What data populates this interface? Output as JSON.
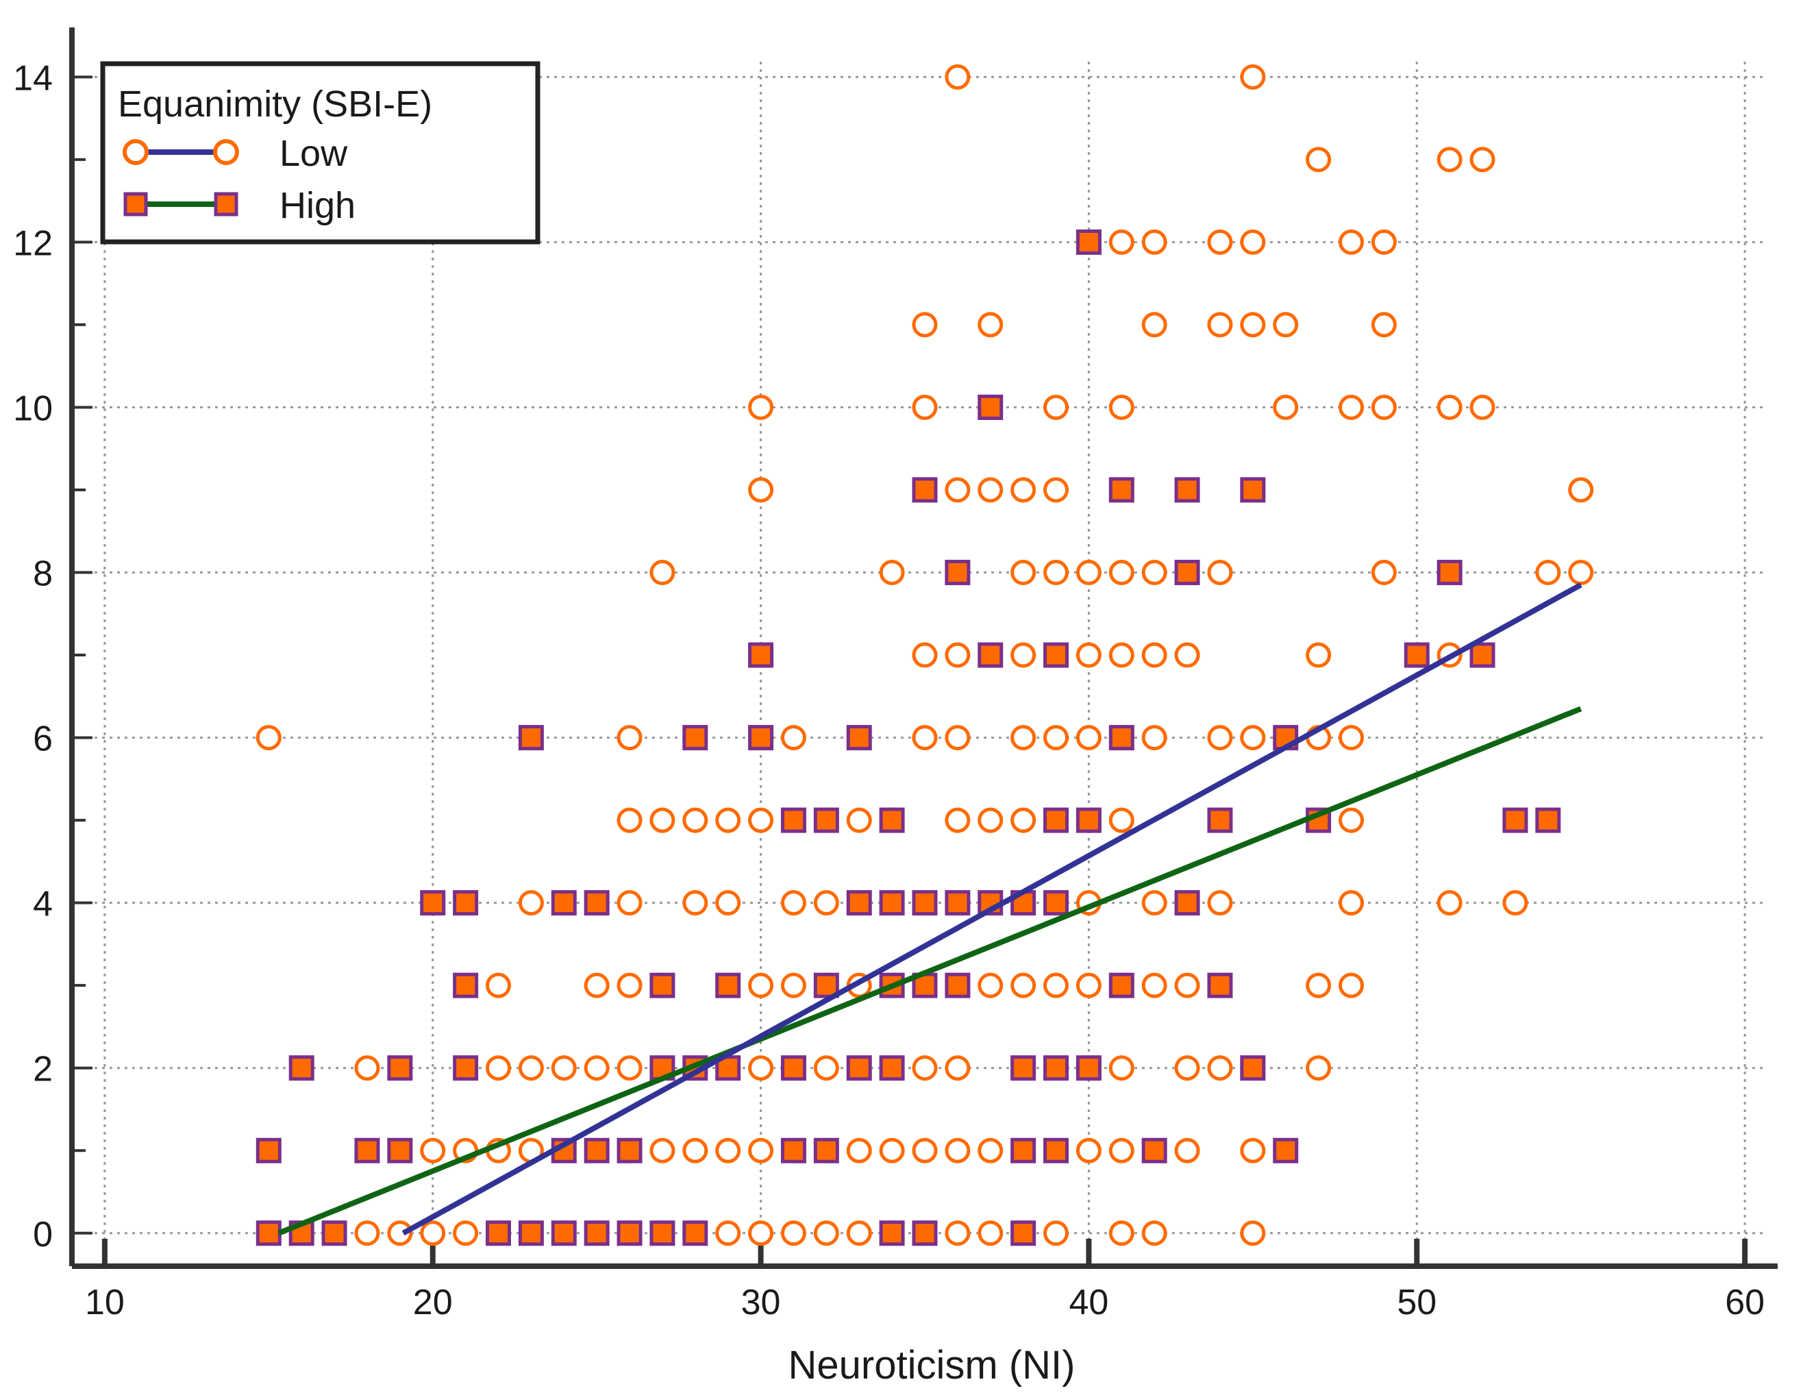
{
  "chart_data": {
    "type": "scatter",
    "title": "",
    "xlabel": "Neuroticism (NI)",
    "ylabel": "",
    "xlim": [
      9,
      61
    ],
    "ylim": [
      -0.4,
      14.6
    ],
    "x_ticks": [
      10,
      20,
      30,
      40,
      50,
      60
    ],
    "y_ticks": [
      0,
      2,
      4,
      6,
      8,
      10,
      12,
      14
    ],
    "x_tick_labels": [
      "10",
      "20",
      "30",
      "40",
      "50",
      "60"
    ],
    "y_tick_labels": [
      "0",
      "2",
      "4",
      "6",
      "8",
      "10",
      "12",
      "14"
    ],
    "grid": true,
    "legend": {
      "title": "Equanimity (SBI-E)",
      "position": "top-left",
      "entries": [
        "Low",
        "High"
      ]
    },
    "colors": {
      "marker_fill_high": "#ff6a00",
      "marker_edge_high": "#7a2f8a",
      "marker_edge_low": "#ff6a00",
      "line_low": "#323296",
      "line_high": "#0f6414",
      "grid": "#999999",
      "axis": "#333333"
    },
    "series": [
      {
        "name": "Low",
        "marker": "circle-open",
        "points": [
          [
            36,
            14
          ],
          [
            45,
            14
          ],
          [
            47,
            13
          ],
          [
            51,
            13
          ],
          [
            52,
            13
          ],
          [
            41,
            12
          ],
          [
            42,
            12
          ],
          [
            44,
            12
          ],
          [
            45,
            12
          ],
          [
            48,
            12
          ],
          [
            49,
            12
          ],
          [
            35,
            11
          ],
          [
            37,
            11
          ],
          [
            42,
            11
          ],
          [
            44,
            11
          ],
          [
            45,
            11
          ],
          [
            46,
            11
          ],
          [
            49,
            11
          ],
          [
            30,
            10
          ],
          [
            35,
            10
          ],
          [
            39,
            10
          ],
          [
            41,
            10
          ],
          [
            46,
            10
          ],
          [
            48,
            10
          ],
          [
            49,
            10
          ],
          [
            51,
            10
          ],
          [
            52,
            10
          ],
          [
            30,
            9
          ],
          [
            35,
            9
          ],
          [
            36,
            9
          ],
          [
            37,
            9
          ],
          [
            38,
            9
          ],
          [
            39,
            9
          ],
          [
            55,
            9
          ],
          [
            27,
            8
          ],
          [
            34,
            8
          ],
          [
            38,
            8
          ],
          [
            39,
            8
          ],
          [
            40,
            8
          ],
          [
            41,
            8
          ],
          [
            42,
            8
          ],
          [
            44,
            8
          ],
          [
            49,
            8
          ],
          [
            54,
            8
          ],
          [
            55,
            8
          ],
          [
            35,
            7
          ],
          [
            36,
            7
          ],
          [
            37,
            7
          ],
          [
            38,
            7
          ],
          [
            39,
            7
          ],
          [
            40,
            7
          ],
          [
            41,
            7
          ],
          [
            42,
            7
          ],
          [
            43,
            7
          ],
          [
            47,
            7
          ],
          [
            51,
            7
          ],
          [
            15,
            6
          ],
          [
            26,
            6
          ],
          [
            31,
            6
          ],
          [
            35,
            6
          ],
          [
            36,
            6
          ],
          [
            38,
            6
          ],
          [
            39,
            6
          ],
          [
            40,
            6
          ],
          [
            41,
            6
          ],
          [
            42,
            6
          ],
          [
            44,
            6
          ],
          [
            45,
            6
          ],
          [
            46,
            6
          ],
          [
            47,
            6
          ],
          [
            48,
            6
          ],
          [
            26,
            5
          ],
          [
            27,
            5
          ],
          [
            28,
            5
          ],
          [
            29,
            5
          ],
          [
            30,
            5
          ],
          [
            32,
            5
          ],
          [
            33,
            5
          ],
          [
            34,
            5
          ],
          [
            36,
            5
          ],
          [
            37,
            5
          ],
          [
            38,
            5
          ],
          [
            39,
            5
          ],
          [
            41,
            5
          ],
          [
            47,
            5
          ],
          [
            48,
            5
          ],
          [
            23,
            4
          ],
          [
            25,
            4
          ],
          [
            26,
            4
          ],
          [
            28,
            4
          ],
          [
            29,
            4
          ],
          [
            31,
            4
          ],
          [
            32,
            4
          ],
          [
            35,
            4
          ],
          [
            36,
            4
          ],
          [
            37,
            4
          ],
          [
            38,
            4
          ],
          [
            39,
            4
          ],
          [
            40,
            4
          ],
          [
            42,
            4
          ],
          [
            43,
            4
          ],
          [
            44,
            4
          ],
          [
            48,
            4
          ],
          [
            51,
            4
          ],
          [
            53,
            4
          ],
          [
            22,
            3
          ],
          [
            25,
            3
          ],
          [
            26,
            3
          ],
          [
            27,
            3
          ],
          [
            30,
            3
          ],
          [
            31,
            3
          ],
          [
            32,
            3
          ],
          [
            33,
            3
          ],
          [
            34,
            3
          ],
          [
            37,
            3
          ],
          [
            38,
            3
          ],
          [
            39,
            3
          ],
          [
            40,
            3
          ],
          [
            41,
            3
          ],
          [
            42,
            3
          ],
          [
            43,
            3
          ],
          [
            47,
            3
          ],
          [
            48,
            3
          ],
          [
            18,
            2
          ],
          [
            22,
            2
          ],
          [
            23,
            2
          ],
          [
            24,
            2
          ],
          [
            25,
            2
          ],
          [
            26,
            2
          ],
          [
            27,
            2
          ],
          [
            28,
            2
          ],
          [
            29,
            2
          ],
          [
            30,
            2
          ],
          [
            32,
            2
          ],
          [
            35,
            2
          ],
          [
            36,
            2
          ],
          [
            39,
            2
          ],
          [
            40,
            2
          ],
          [
            41,
            2
          ],
          [
            43,
            2
          ],
          [
            44,
            2
          ],
          [
            47,
            2
          ],
          [
            20,
            1
          ],
          [
            21,
            1
          ],
          [
            22,
            1
          ],
          [
            23,
            1
          ],
          [
            26,
            1
          ],
          [
            27,
            1
          ],
          [
            28,
            1
          ],
          [
            29,
            1
          ],
          [
            30,
            1
          ],
          [
            31,
            1
          ],
          [
            32,
            1
          ],
          [
            33,
            1
          ],
          [
            34,
            1
          ],
          [
            35,
            1
          ],
          [
            36,
            1
          ],
          [
            37,
            1
          ],
          [
            40,
            1
          ],
          [
            41,
            1
          ],
          [
            43,
            1
          ],
          [
            45,
            1
          ],
          [
            18,
            0
          ],
          [
            19,
            0
          ],
          [
            20,
            0
          ],
          [
            21,
            0
          ],
          [
            29,
            0
          ],
          [
            30,
            0
          ],
          [
            31,
            0
          ],
          [
            32,
            0
          ],
          [
            33,
            0
          ],
          [
            35,
            0
          ],
          [
            36,
            0
          ],
          [
            37,
            0
          ],
          [
            38,
            0
          ],
          [
            39,
            0
          ],
          [
            41,
            0
          ],
          [
            42,
            0
          ],
          [
            45,
            0
          ]
        ],
        "fit_line": [
          [
            19.1,
            0.0
          ],
          [
            55,
            7.85
          ]
        ]
      },
      {
        "name": "High",
        "marker": "square-filled",
        "points": [
          [
            40,
            12
          ],
          [
            37,
            10
          ],
          [
            35,
            9
          ],
          [
            41,
            9
          ],
          [
            43,
            9
          ],
          [
            45,
            9
          ],
          [
            36,
            8
          ],
          [
            43,
            8
          ],
          [
            51,
            8
          ],
          [
            30,
            7
          ],
          [
            37,
            7
          ],
          [
            39,
            7
          ],
          [
            50,
            7
          ],
          [
            52,
            7
          ],
          [
            23,
            6
          ],
          [
            28,
            6
          ],
          [
            30,
            6
          ],
          [
            33,
            6
          ],
          [
            41,
            6
          ],
          [
            46,
            6
          ],
          [
            31,
            5
          ],
          [
            32,
            5
          ],
          [
            34,
            5
          ],
          [
            39,
            5
          ],
          [
            40,
            5
          ],
          [
            44,
            5
          ],
          [
            47,
            5
          ],
          [
            53,
            5
          ],
          [
            54,
            5
          ],
          [
            20,
            4
          ],
          [
            21,
            4
          ],
          [
            24,
            4
          ],
          [
            25,
            4
          ],
          [
            33,
            4
          ],
          [
            34,
            4
          ],
          [
            35,
            4
          ],
          [
            36,
            4
          ],
          [
            37,
            4
          ],
          [
            38,
            4
          ],
          [
            39,
            4
          ],
          [
            43,
            4
          ],
          [
            21,
            3
          ],
          [
            27,
            3
          ],
          [
            29,
            3
          ],
          [
            32,
            3
          ],
          [
            34,
            3
          ],
          [
            35,
            3
          ],
          [
            36,
            3
          ],
          [
            41,
            3
          ],
          [
            44,
            3
          ],
          [
            16,
            2
          ],
          [
            19,
            2
          ],
          [
            21,
            2
          ],
          [
            27,
            2
          ],
          [
            28,
            2
          ],
          [
            29,
            2
          ],
          [
            31,
            2
          ],
          [
            33,
            2
          ],
          [
            34,
            2
          ],
          [
            38,
            2
          ],
          [
            39,
            2
          ],
          [
            40,
            2
          ],
          [
            45,
            2
          ],
          [
            15,
            1
          ],
          [
            18,
            1
          ],
          [
            19,
            1
          ],
          [
            24,
            1
          ],
          [
            25,
            1
          ],
          [
            26,
            1
          ],
          [
            31,
            1
          ],
          [
            32,
            1
          ],
          [
            38,
            1
          ],
          [
            39,
            1
          ],
          [
            42,
            1
          ],
          [
            46,
            1
          ],
          [
            15,
            0
          ],
          [
            16,
            0
          ],
          [
            17,
            0
          ],
          [
            22,
            0
          ],
          [
            23,
            0
          ],
          [
            24,
            0
          ],
          [
            25,
            0
          ],
          [
            26,
            0
          ],
          [
            27,
            0
          ],
          [
            28,
            0
          ],
          [
            34,
            0
          ],
          [
            35,
            0
          ],
          [
            38,
            0
          ]
        ],
        "fit_line": [
          [
            15.3,
            0.0
          ],
          [
            55,
            6.35
          ]
        ]
      }
    ]
  }
}
